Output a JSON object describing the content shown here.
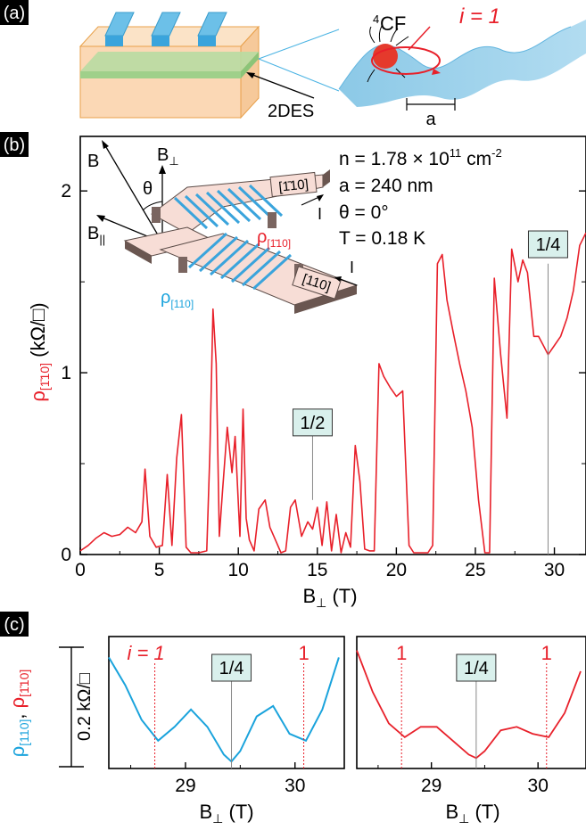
{
  "panel_a": {
    "tag": "(a)",
    "label_2des": "2DES",
    "cf_label": "CF",
    "cf_sup": "4",
    "i_label": "i = 1",
    "period_label": "a"
  },
  "panel_b": {
    "tag": "(b)",
    "params": {
      "density": "n = 1.78 × 10",
      "density_exp": "11",
      "density_unit": " cm",
      "density_unit_exp": "-2",
      "period": "a = 240 nm",
      "angle": "θ = 0°",
      "temperature": "T = 0.18 K"
    },
    "inset": {
      "B": "B",
      "Bperp": "B",
      "Bperp_sub": "⊥",
      "Bpar": "B",
      "Bpar_sub": "||",
      "theta": "θ",
      "label_top": "[1̄10]",
      "label_bottom": "[110]",
      "rho_red": "ρ",
      "rho_red_sub": "[1̄10]",
      "rho_blue": "ρ",
      "rho_blue_sub": "[110]",
      "current": "I"
    },
    "annotations": {
      "half": "1/2",
      "quarter": "1/4"
    }
  },
  "panel_c": {
    "tag": "(c)",
    "ylabel_blue": "ρ[110],",
    "ylabel_red": "ρ[1̄10]",
    "scale_label": "0.2 kΩ/□",
    "left": {
      "i_label": "i = 1",
      "right_label": "1",
      "center": "1/4"
    },
    "right": {
      "left_label": "1",
      "right_label": "1",
      "center": "1/4"
    }
  },
  "chart_data": [
    {
      "type": "line",
      "title": "",
      "xlabel": "B⊥ (T)",
      "ylabel": "ρ[1̄10] (kΩ/□)",
      "xlim": [
        0,
        32
      ],
      "ylim": [
        0,
        2.3
      ],
      "xticks": [
        0,
        5,
        10,
        15,
        20,
        25,
        30
      ],
      "yticks": [
        0,
        1,
        2
      ],
      "series": [
        {
          "color": "#e8202a",
          "x": [
            0,
            0.5,
            1,
            1.5,
            2,
            2.5,
            3,
            3.5,
            3.9,
            4.1,
            4.4,
            4.8,
            5.2,
            5.5,
            5.8,
            6.1,
            6.4,
            6.7,
            7,
            7.5,
            8,
            8.2,
            8.4,
            8.6,
            8.8,
            9,
            9.3,
            9.6,
            9.8,
            10.1,
            10.3,
            10.5,
            10.7,
            11,
            11.3,
            11.7,
            12,
            12.4,
            12.7,
            13,
            13.3,
            13.6,
            14,
            14.4,
            14.7,
            15,
            15.3,
            15.6,
            15.9,
            16.2,
            16.5,
            16.8,
            17.1,
            17.4,
            17.7,
            18,
            18.3,
            18.6,
            18.9,
            19.2,
            19.6,
            20,
            20.4,
            20.8,
            21.1,
            21.4,
            21.7,
            22,
            22.3,
            22.6,
            22.9,
            23.2,
            23.6,
            24,
            24.4,
            24.8,
            25.2,
            25.6,
            25.9,
            26.2,
            26.6,
            27,
            27.3,
            27.7,
            28,
            28.3,
            28.7,
            29,
            29.3,
            29.6,
            30,
            30.4,
            30.8,
            31.2,
            31.6,
            32
          ],
          "y": [
            0.02,
            0.05,
            0.09,
            0.12,
            0.1,
            0.11,
            0.15,
            0.12,
            0.18,
            0.47,
            0.1,
            0.04,
            0.05,
            0.44,
            0.05,
            0.53,
            0.77,
            0.04,
            0.01,
            0.01,
            0.02,
            0.56,
            1.35,
            1.05,
            0.1,
            0.35,
            0.7,
            0.45,
            0.65,
            0.1,
            0.8,
            0.2,
            0.08,
            0.02,
            0.25,
            0.3,
            0.15,
            0.07,
            0.01,
            0.02,
            0.26,
            0.3,
            0.1,
            0.18,
            0.14,
            0.26,
            0.05,
            0.29,
            0.02,
            0.22,
            0.01,
            0.12,
            0.04,
            0.6,
            0.4,
            0.03,
            0.02,
            0.02,
            1.05,
            0.98,
            0.92,
            0.87,
            0.9,
            0.05,
            0.01,
            0.01,
            0.01,
            0.01,
            0.05,
            1.6,
            1.65,
            1.4,
            1.22,
            1.05,
            0.9,
            0.7,
            0.3,
            0.01,
            0.01,
            1.52,
            1.1,
            0.75,
            1.68,
            1.5,
            1.62,
            1.55,
            1.2,
            1.2,
            1.15,
            1.1,
            1.15,
            1.2,
            1.3,
            1.45,
            1.7,
            1.77
          ]
        }
      ],
      "annotations": [
        "1/2",
        "1/4"
      ]
    },
    {
      "type": "line",
      "title": "",
      "xlabel": "B⊥ (T)",
      "xticks": [
        29,
        30
      ],
      "series": [
        {
          "name": "ρ[110]",
          "color": "#1aa3dc",
          "x": [
            28.3,
            28.45,
            28.6,
            28.75,
            28.9,
            29.05,
            29.2,
            29.35,
            29.42,
            29.5,
            29.65,
            29.8,
            29.95,
            30.1,
            30.25,
            30.4
          ],
          "y": [
            0.3,
            0.22,
            0.12,
            0.06,
            0.1,
            0.15,
            0.1,
            0.02,
            0.0,
            0.03,
            0.13,
            0.16,
            0.08,
            0.06,
            0.15,
            0.3
          ]
        }
      ],
      "annotations": [
        "i = 1",
        "1/4",
        "1"
      ]
    },
    {
      "type": "line",
      "title": "",
      "xlabel": "B⊥ (T)",
      "xticks": [
        29,
        30
      ],
      "series": [
        {
          "name": "ρ[1̄10]",
          "color": "#e8202a",
          "x": [
            28.3,
            28.45,
            28.6,
            28.75,
            28.9,
            29.05,
            29.2,
            29.35,
            29.42,
            29.5,
            29.65,
            29.8,
            29.95,
            30.1,
            30.25,
            30.4
          ],
          "y": [
            0.32,
            0.2,
            0.11,
            0.07,
            0.1,
            0.1,
            0.06,
            0.02,
            0.01,
            0.03,
            0.09,
            0.1,
            0.08,
            0.07,
            0.14,
            0.26
          ]
        }
      ],
      "annotations": [
        "1",
        "1/4",
        "1"
      ]
    }
  ]
}
